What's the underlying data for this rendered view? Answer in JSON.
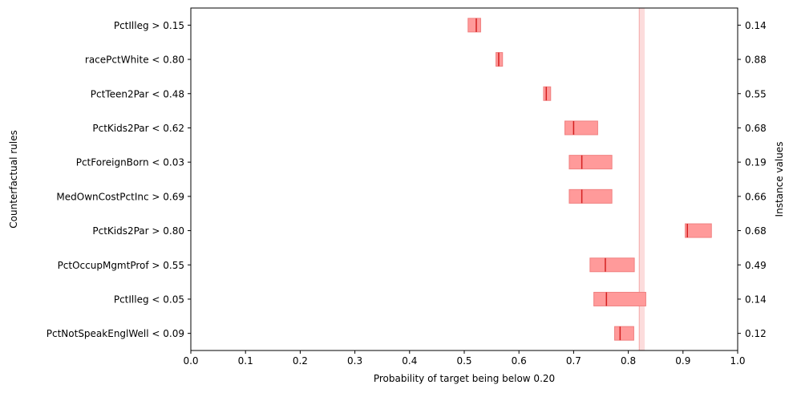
{
  "chart_data": {
    "type": "interval",
    "xlabel": "Probability of target being below 0.20",
    "ylabel": "Counterfactual rules",
    "ylabel_right": "Instance values",
    "xlim": [
      0.0,
      1.0
    ],
    "xticks": [
      "0.0",
      "0.1",
      "0.2",
      "0.3",
      "0.4",
      "0.5",
      "0.6",
      "0.7",
      "0.8",
      "0.9",
      "1.0"
    ],
    "reference_band": {
      "low": 0.82,
      "high": 0.83,
      "color": "#fcdcdc"
    },
    "colors": {
      "interval_fill": "#ff9a9a",
      "interval_edge": "#f08080",
      "median_line": "#d42020"
    },
    "rules": [
      {
        "label": "PctIlleg > 0.15",
        "instance_value": "0.14",
        "low": 0.507,
        "high": 0.53,
        "point": 0.522
      },
      {
        "label": "racePctWhite < 0.80",
        "instance_value": "0.88",
        "low": 0.558,
        "high": 0.57,
        "point": 0.563
      },
      {
        "label": "PctTeen2Par < 0.48",
        "instance_value": "0.55",
        "low": 0.645,
        "high": 0.658,
        "point": 0.65
      },
      {
        "label": "PctKids2Par < 0.62",
        "instance_value": "0.68",
        "low": 0.684,
        "high": 0.744,
        "point": 0.7
      },
      {
        "label": "PctForeignBorn < 0.03",
        "instance_value": "0.19",
        "low": 0.692,
        "high": 0.77,
        "point": 0.715
      },
      {
        "label": "MedOwnCostPctInc > 0.69",
        "instance_value": "0.66",
        "low": 0.692,
        "high": 0.77,
        "point": 0.715
      },
      {
        "label": "PctKids2Par > 0.80",
        "instance_value": "0.68",
        "low": 0.904,
        "high": 0.952,
        "point": 0.908
      },
      {
        "label": "PctOccupMgmtProf > 0.55",
        "instance_value": "0.49",
        "low": 0.73,
        "high": 0.811,
        "point": 0.758
      },
      {
        "label": "PctIlleg < 0.05",
        "instance_value": "0.14",
        "low": 0.737,
        "high": 0.832,
        "point": 0.76
      },
      {
        "label": "PctNotSpeakEnglWell < 0.09",
        "instance_value": "0.12",
        "low": 0.775,
        "high": 0.81,
        "point": 0.785
      }
    ]
  }
}
